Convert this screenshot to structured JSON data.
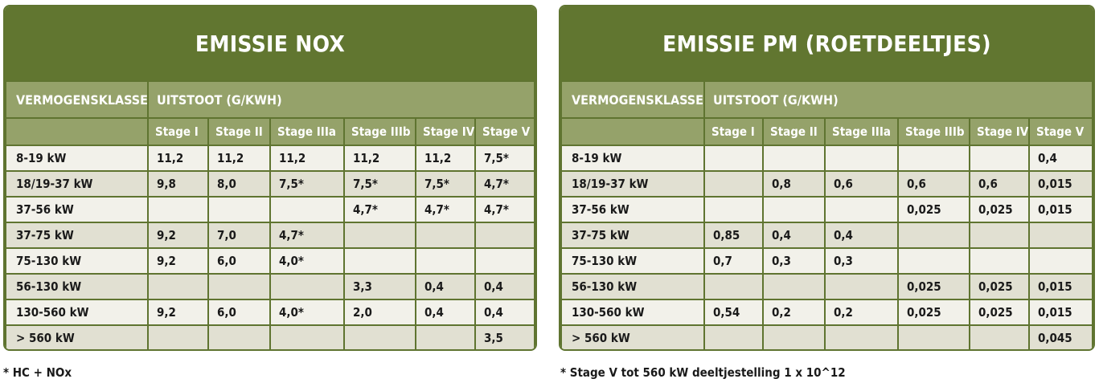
{
  "nox": {
    "title": "EMISSIE NOX",
    "col_class": "VERMOGENSKLASSE",
    "col_uitstoot": "UITSTOOT (G/KWH)",
    "stages": [
      "Stage I",
      "Stage II",
      "Stage IIIa",
      "Stage IIIb",
      "Stage IV",
      "Stage V"
    ],
    "rows": [
      {
        "klasse": "8-19 kW",
        "v": [
          "11,2",
          "11,2",
          "11,2",
          "11,2",
          "11,2",
          "7,5*"
        ]
      },
      {
        "klasse": "18/19-37 kW",
        "v": [
          "9,8",
          "8,0",
          "7,5*",
          "7,5*",
          "7,5*",
          "4,7*"
        ]
      },
      {
        "klasse": "37-56 kW",
        "v": [
          "",
          "",
          "",
          "4,7*",
          "4,7*",
          "4,7*"
        ]
      },
      {
        "klasse": "37-75 kW",
        "v": [
          "9,2",
          "7,0",
          "4,7*",
          "",
          "",
          ""
        ]
      },
      {
        "klasse": "75-130 kW",
        "v": [
          "9,2",
          "6,0",
          "4,0*",
          "",
          "",
          ""
        ]
      },
      {
        "klasse": "56-130 kW",
        "v": [
          "",
          "",
          "",
          "3,3",
          "0,4",
          "0,4"
        ]
      },
      {
        "klasse": "130-560 kW",
        "v": [
          "9,2",
          "6,0",
          "4,0*",
          "2,0",
          "0,4",
          "0,4"
        ]
      },
      {
        "klasse": "> 560 kW",
        "v": [
          "",
          "",
          "",
          "",
          "",
          "3,5"
        ]
      }
    ],
    "note": "* HC + NOx"
  },
  "pm": {
    "title": "EMISSIE PM (ROETDEELTJES)",
    "col_class": "VERMOGENSKLASSE",
    "col_uitstoot": "UITSTOOT (G/KWH)",
    "stages": [
      "Stage I",
      "Stage II",
      "Stage IIIa",
      "Stage IIIb",
      "Stage IV",
      "Stage V"
    ],
    "rows": [
      {
        "klasse": "8-19 kW",
        "v": [
          "",
          "",
          "",
          "",
          "",
          "0,4"
        ]
      },
      {
        "klasse": "18/19-37 kW",
        "v": [
          "",
          "0,8",
          "0,6",
          "0,6",
          "0,6",
          "0,015"
        ]
      },
      {
        "klasse": "37-56 kW",
        "v": [
          "",
          "",
          "",
          "0,025",
          "0,025",
          "0,015"
        ]
      },
      {
        "klasse": "37-75 kW",
        "v": [
          "0,85",
          "0,4",
          "0,4",
          "",
          "",
          ""
        ]
      },
      {
        "klasse": "75-130 kW",
        "v": [
          "0,7",
          "0,3",
          "0,3",
          "",
          "",
          ""
        ]
      },
      {
        "klasse": "56-130 kW",
        "v": [
          "",
          "",
          "",
          "0,025",
          "0,025",
          "0,015"
        ]
      },
      {
        "klasse": "130-560 kW",
        "v": [
          "0,54",
          "0,2",
          "0,2",
          "0,025",
          "0,025",
          "0,015"
        ]
      },
      {
        "klasse": "> 560 kW",
        "v": [
          "",
          "",
          "",
          "",
          "",
          "0,045"
        ]
      }
    ],
    "note": "* Stage V tot 560 kW deeltjestelling 1 x 10^12"
  }
}
